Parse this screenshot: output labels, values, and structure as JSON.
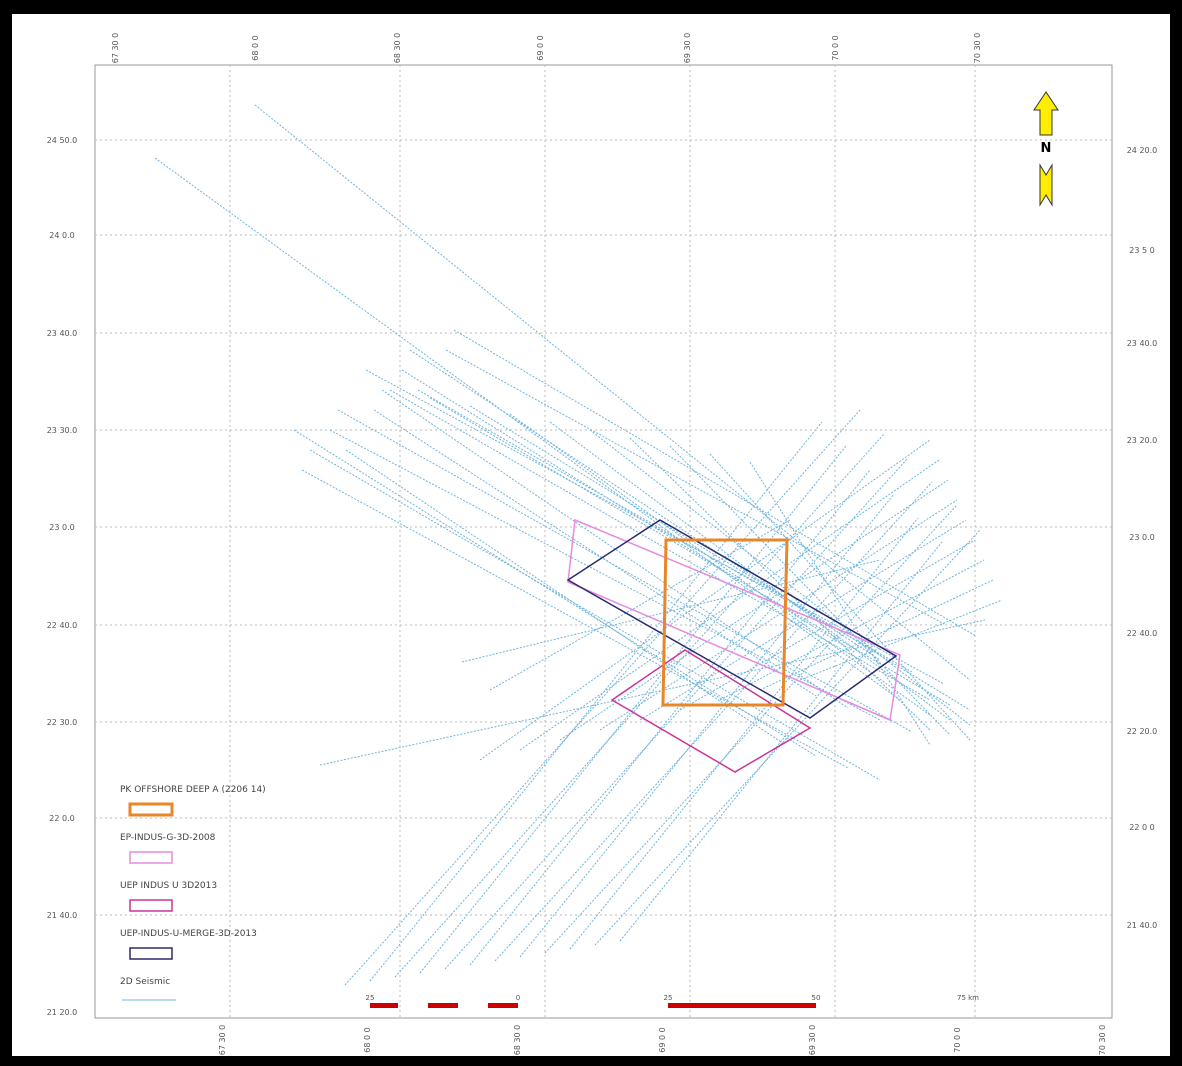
{
  "map": {
    "top_labels": [
      "67 30 0",
      "68 0 0",
      "68 30 0",
      "69 0 0",
      "69 30 0",
      "70 0 0",
      "70 30 0"
    ],
    "bottom_labels": [
      "67 30 0",
      "68 0 0",
      "68 30 0",
      "69 0 0",
      "69 30 0",
      "70 0 0",
      "70 30 0"
    ],
    "left_labels": [
      "24 50.0",
      "24 0.0",
      "23 40.0",
      "23 30.0",
      "23 0.0",
      "22 40.0",
      "22 30.0",
      "22 0.0",
      "21 40.0",
      "21 20.0"
    ],
    "right_labels": [
      "24 20.0",
      "23 5 0",
      "23 40.0",
      "23 20.0",
      "23 0.0",
      "22 40.0",
      "22 20.0",
      "22 0 0",
      "21 40.0"
    ],
    "north": "N",
    "legend": [
      "PK OFFSHORE DEEP A (2206 14)",
      "EP-INDUS-G-3D-2008",
      "UEP INDUS U 3D2013",
      "UEP-INDUS-U-MERGE-3D-2013",
      "2D Seismic"
    ],
    "scale_labels": [
      "25",
      "0",
      "25",
      "50",
      "75 km"
    ]
  }
}
